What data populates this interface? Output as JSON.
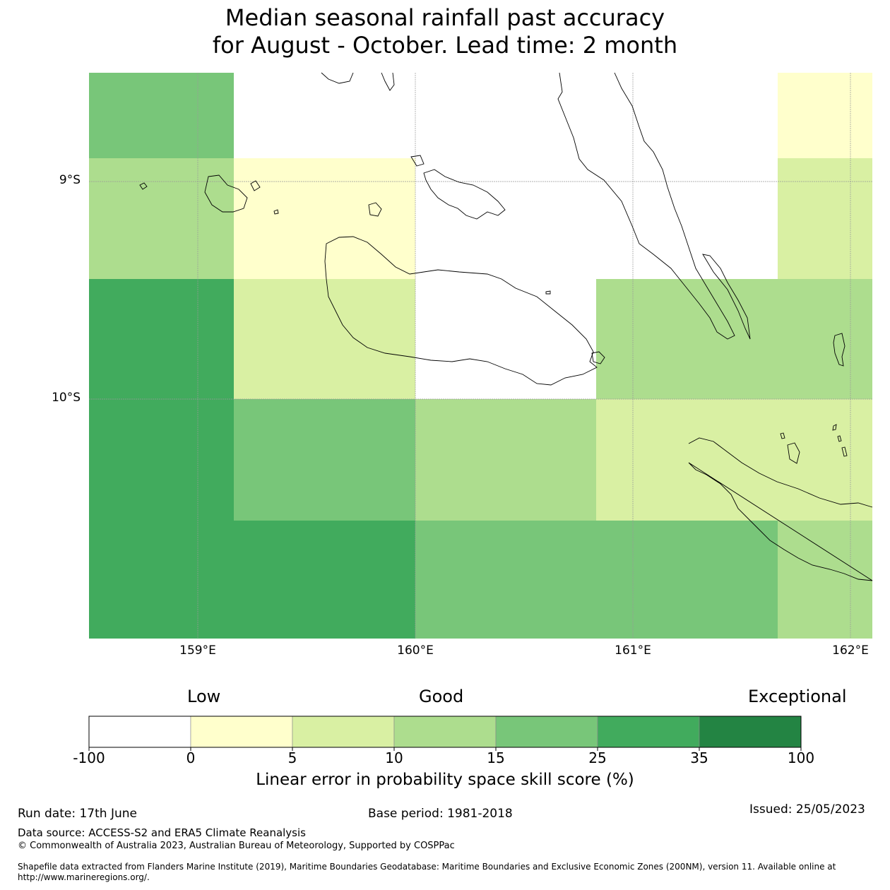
{
  "title": {
    "line1": "Median seasonal rainfall past accuracy",
    "line2": "for August - October. Lead time: 2 month"
  },
  "map": {
    "lon_range": [
      158.5,
      162.1
    ],
    "lat_range": [
      -11.1,
      -8.5
    ],
    "lat_labels": [
      "9°S",
      "10°S"
    ],
    "lon_labels": [
      "159°E",
      "160°E",
      "161°E",
      "162°E"
    ],
    "cells": [
      {
        "col": 0,
        "row": 0,
        "category": 4
      },
      {
        "col": 1,
        "row": 0,
        "category": 0
      },
      {
        "col": 2,
        "row": 0,
        "category": 0
      },
      {
        "col": 3,
        "row": 0,
        "category": 0
      },
      {
        "col": 4,
        "row": 0,
        "category": 0
      },
      {
        "col": 5,
        "row": 0,
        "category": 1
      },
      {
        "col": 0,
        "row": 1,
        "category": 3
      },
      {
        "col": 1,
        "row": 1,
        "category": 1
      },
      {
        "col": 2,
        "row": 1,
        "category": 0
      },
      {
        "col": 3,
        "row": 1,
        "category": 0
      },
      {
        "col": 4,
        "row": 1,
        "category": 0
      },
      {
        "col": 5,
        "row": 1,
        "category": 2
      },
      {
        "col": 0,
        "row": 2,
        "category": 5
      },
      {
        "col": 1,
        "row": 2,
        "category": 2
      },
      {
        "col": 2,
        "row": 2,
        "category": 0
      },
      {
        "col": 3,
        "row": 2,
        "category": 3
      },
      {
        "col": 4,
        "row": 2,
        "category": 3
      },
      {
        "col": 5,
        "row": 2,
        "category": 3
      },
      {
        "col": 0,
        "row": 3,
        "category": 5
      },
      {
        "col": 1,
        "row": 3,
        "category": 4
      },
      {
        "col": 2,
        "row": 3,
        "category": 3
      },
      {
        "col": 3,
        "row": 3,
        "category": 2
      },
      {
        "col": 4,
        "row": 3,
        "category": 2
      },
      {
        "col": 5,
        "row": 3,
        "category": 2
      },
      {
        "col": 0,
        "row": 4,
        "category": 5
      },
      {
        "col": 1,
        "row": 4,
        "category": 5
      },
      {
        "col": 2,
        "row": 4,
        "category": 4
      },
      {
        "col": 3,
        "row": 4,
        "category": 4
      },
      {
        "col": 4,
        "row": 4,
        "category": 4
      },
      {
        "col": 5,
        "row": 4,
        "category": 3
      }
    ]
  },
  "legend": {
    "categories": [
      "Low",
      "Good",
      "Exceptional"
    ],
    "ticks": [
      "-100",
      "0",
      "5",
      "10",
      "15",
      "25",
      "35",
      "100"
    ],
    "colors": [
      "#ffffff",
      "#ffffcc",
      "#d9f0a3",
      "#addd8e",
      "#78c679",
      "#41ab5d",
      "#238443"
    ],
    "label": "Linear error in probability space skill score (%)"
  },
  "footer": {
    "run_date": "Run date: 17th June",
    "base_period": "Base period: 1981-2018",
    "issued": "Issued: 25/05/2023",
    "data_source": "Data source: ACCESS-S2 and ERA5 Climate Reanalysis",
    "copyright": "© Commonwealth of Australia 2023, Australian Bureau of Meteorology, Supported by COSPPac",
    "shapefile": "Shapefile data extracted from Flanders Marine Institute (2019), Maritime Boundaries Geodatabase: Maritime Boundaries and Exclusive Economic Zones (200NM), version 11. Available online at http://www.marineregions.org/."
  }
}
